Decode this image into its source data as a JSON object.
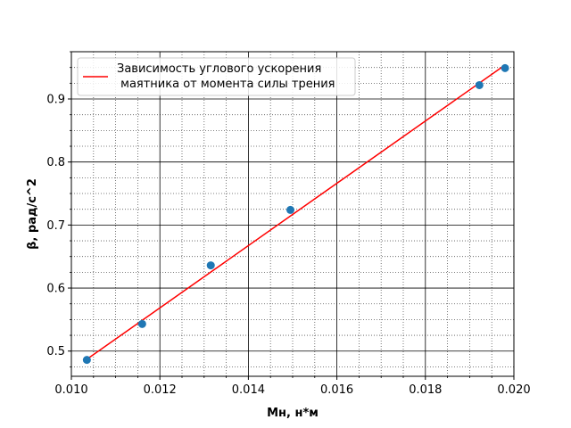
{
  "chart_data": {
    "type": "scatter",
    "xlabel": "Мн, н*м",
    "ylabel": "β, рад/с^2",
    "xlim": [
      0.01,
      0.02
    ],
    "ylim": [
      0.46,
      0.975
    ],
    "x_ticks": [
      "0.010",
      "0.012",
      "0.014",
      "0.016",
      "0.018",
      "0.020"
    ],
    "y_ticks": [
      "0.5",
      "0.6",
      "0.7",
      "0.8",
      "0.9"
    ],
    "grid": {
      "major": true,
      "minor": true
    },
    "legend_position": "top-left",
    "legend": {
      "line1": "Зависимость углового ускорения",
      "line2": " маятника от момента силы трения"
    },
    "series": [
      {
        "kind": "points",
        "color": "#1f77b4",
        "x": [
          0.01035,
          0.0116,
          0.01315,
          0.01495,
          0.01922,
          0.0198
        ],
        "y": [
          0.486,
          0.543,
          0.636,
          0.724,
          0.922,
          0.949
        ]
      },
      {
        "kind": "fit-line",
        "color": "#ff0000",
        "x": [
          0.01035,
          0.0198
        ],
        "y": [
          0.487,
          0.954
        ]
      }
    ]
  }
}
